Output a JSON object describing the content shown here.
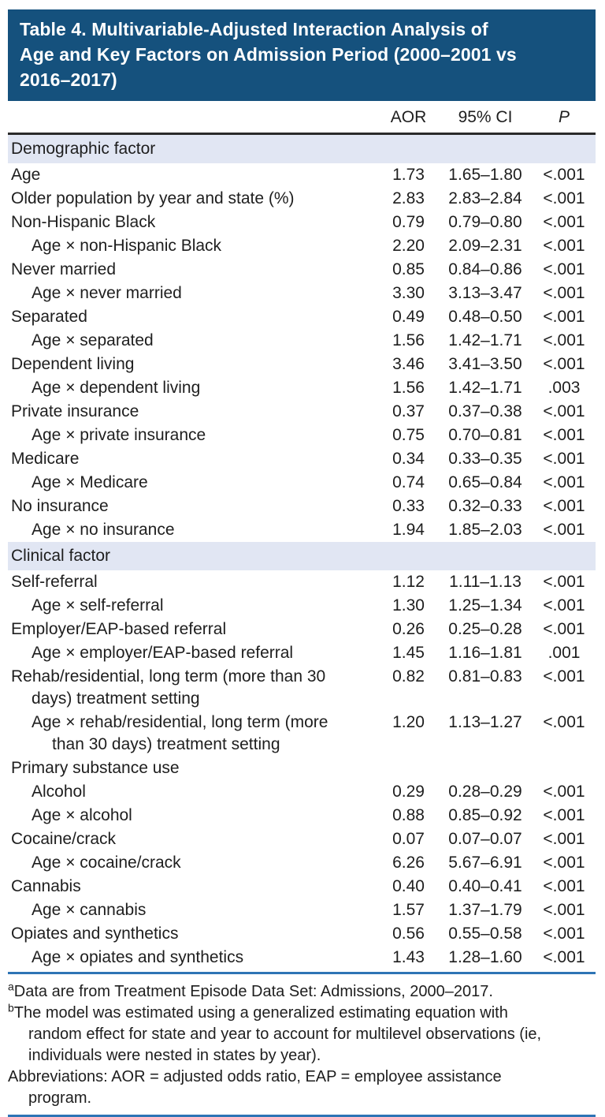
{
  "title": "Table 4. Multivariable-Adjusted Interaction Analysis of\nAge and Key Factors on Admission Period (2000–2001 vs\n2016–2017)",
  "colors": {
    "banner": "#15517d",
    "section_band": "#e1e6f3",
    "rule_dark": "#2a2a2a",
    "rule_blue": "#2e74b5",
    "text": "#1e1e1e"
  },
  "table": {
    "columns": [
      "AOR",
      "95% CI",
      "P"
    ],
    "sections": [
      {
        "header": "Demographic factor",
        "rows": [
          {
            "label": "Age",
            "indent": 0,
            "aor": "1.73",
            "ci": "1.65–1.80",
            "p": "<.001"
          },
          {
            "label": "Older population by year and state (%)",
            "indent": 0,
            "aor": "2.83",
            "ci": "2.83–2.84",
            "p": "<.001"
          },
          {
            "label": "Non-Hispanic Black",
            "indent": 0,
            "aor": "0.79",
            "ci": "0.79–0.80",
            "p": "<.001"
          },
          {
            "label": "Age × non-Hispanic Black",
            "indent": 1,
            "aor": "2.20",
            "ci": "2.09–2.31",
            "p": "<.001"
          },
          {
            "label": "Never married",
            "indent": 0,
            "aor": "0.85",
            "ci": "0.84–0.86",
            "p": "<.001"
          },
          {
            "label": "Age × never married",
            "indent": 1,
            "aor": "3.30",
            "ci": "3.13–3.47",
            "p": "<.001"
          },
          {
            "label": "Separated",
            "indent": 0,
            "aor": "0.49",
            "ci": "0.48–0.50",
            "p": "<.001"
          },
          {
            "label": "Age × separated",
            "indent": 1,
            "aor": "1.56",
            "ci": "1.42–1.71",
            "p": "<.001"
          },
          {
            "label": "Dependent living",
            "indent": 0,
            "aor": "3.46",
            "ci": "3.41–3.50",
            "p": "<.001"
          },
          {
            "label": "Age × dependent living",
            "indent": 1,
            "aor": "1.56",
            "ci": "1.42–1.71",
            "p": ".003"
          },
          {
            "label": "Private insurance",
            "indent": 0,
            "aor": "0.37",
            "ci": "0.37–0.38",
            "p": "<.001"
          },
          {
            "label": "Age × private insurance",
            "indent": 1,
            "aor": "0.75",
            "ci": "0.70–0.81",
            "p": "<.001"
          },
          {
            "label": "Medicare",
            "indent": 0,
            "aor": "0.34",
            "ci": "0.33–0.35",
            "p": "<.001"
          },
          {
            "label": "Age × Medicare",
            "indent": 1,
            "aor": "0.74",
            "ci": "0.65–0.84",
            "p": "<.001"
          },
          {
            "label": "No insurance",
            "indent": 0,
            "aor": "0.33",
            "ci": "0.32–0.33",
            "p": "<.001"
          },
          {
            "label": "Age × no insurance",
            "indent": 1,
            "aor": "1.94",
            "ci": "1.85–2.03",
            "p": "<.001"
          }
        ]
      },
      {
        "header": "Clinical factor",
        "rows": [
          {
            "label": "Self-referral",
            "indent": 0,
            "aor": "1.12",
            "ci": "1.11–1.13",
            "p": "<.001"
          },
          {
            "label": "Age × self-referral",
            "indent": 1,
            "aor": "1.30",
            "ci": "1.25–1.34",
            "p": "<.001"
          },
          {
            "label": "Employer/EAP-based referral",
            "indent": 0,
            "aor": "0.26",
            "ci": "0.25–0.28",
            "p": "<.001"
          },
          {
            "label": "Age × employer/EAP-based referral",
            "indent": 1,
            "aor": "1.45",
            "ci": "1.16–1.81",
            "p": ".001"
          },
          {
            "label": "Rehab/residential, long term (more than 30\ndays) treatment setting",
            "indent": 0,
            "aor": "0.82",
            "ci": "0.81–0.83",
            "p": "<.001"
          },
          {
            "label": "Age × rehab/residential, long term (more\nthan 30 days) treatment setting",
            "indent": 1,
            "aor": "1.20",
            "ci": "1.13–1.27",
            "p": "<.001"
          },
          {
            "label": "Primary substance use",
            "indent": 0,
            "aor": "",
            "ci": "",
            "p": ""
          },
          {
            "label": "Alcohol",
            "indent": 1,
            "aor": "0.29",
            "ci": "0.28–0.29",
            "p": "<.001"
          },
          {
            "label": "Age × alcohol",
            "indent": 1,
            "aor": "0.88",
            "ci": "0.85–0.92",
            "p": "<.001"
          },
          {
            "label": "Cocaine/crack",
            "indent": 0,
            "aor": "0.07",
            "ci": "0.07–0.07",
            "p": "<.001"
          },
          {
            "label": "Age × cocaine/crack",
            "indent": 1,
            "aor": "6.26",
            "ci": "5.67–6.91",
            "p": "<.001"
          },
          {
            "label": "Cannabis",
            "indent": 0,
            "aor": "0.40",
            "ci": "0.40–0.41",
            "p": "<.001"
          },
          {
            "label": "Age × cannabis",
            "indent": 1,
            "aor": "1.57",
            "ci": "1.37–1.79",
            "p": "<.001"
          },
          {
            "label": "Opiates and synthetics",
            "indent": 0,
            "aor": "0.56",
            "ci": "0.55–0.58",
            "p": "<.001"
          },
          {
            "label": "Age × opiates and synthetics",
            "indent": 1,
            "aor": "1.43",
            "ci": "1.28–1.60",
            "p": "<.001"
          }
        ]
      }
    ]
  },
  "footnotes": [
    {
      "marker": "a",
      "text": "Data are from Treatment Episode Data Set: Admissions, 2000–2017."
    },
    {
      "marker": "b",
      "text": "The model was estimated using a generalized estimating equation with\nrandom effect for state and year to account for multilevel observations (ie,\nindividuals were nested in states by year)."
    },
    {
      "marker": "",
      "text": "Abbreviations: AOR = adjusted odds ratio, EAP = employee assistance\nprogram."
    }
  ]
}
